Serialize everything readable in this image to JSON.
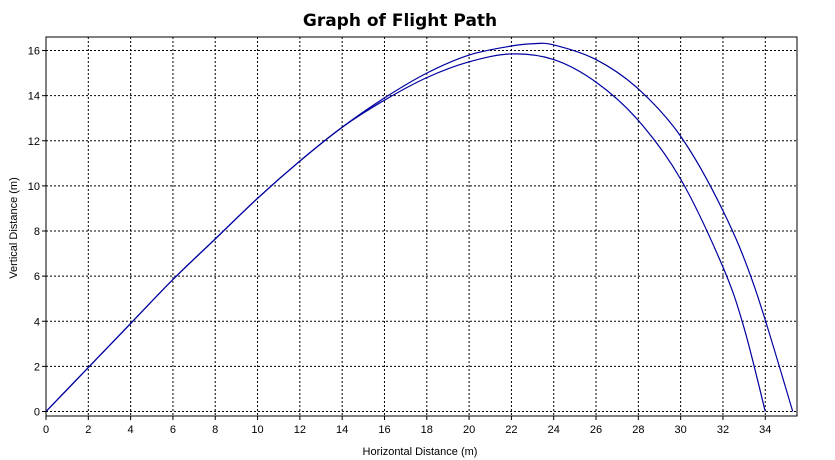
{
  "chart_data": {
    "type": "line",
    "title": "Graph of Flight Path",
    "xlabel": "Horizontal Distance (m)",
    "ylabel": "Vertical Distance (m)",
    "xlim": [
      0,
      35.5
    ],
    "ylim": [
      -0.2,
      16.6
    ],
    "grid": true,
    "x_ticks": [
      0,
      2,
      4,
      6,
      8,
      10,
      12,
      14,
      16,
      18,
      20,
      22,
      24,
      26,
      28,
      30,
      32,
      34
    ],
    "y_ticks": [
      0,
      2,
      4,
      6,
      8,
      10,
      12,
      14,
      16
    ],
    "series": [
      {
        "color": "#0000a0",
        "x": [
          0,
          2,
          4,
          6,
          8,
          10,
          12,
          14,
          16,
          18,
          20,
          22,
          23,
          24,
          26,
          28,
          30,
          32,
          33.5,
          35.3
        ],
        "y": [
          0,
          1.95,
          3.9,
          5.85,
          7.65,
          9.45,
          11.1,
          12.6,
          13.9,
          15.0,
          15.8,
          16.2,
          16.3,
          16.25,
          15.6,
          14.3,
          12.2,
          8.9,
          5.5,
          0
        ]
      },
      {
        "color": "#0000a0",
        "x": [
          0,
          2,
          4,
          6,
          8,
          10,
          12,
          14,
          16,
          18,
          20,
          22,
          24,
          26,
          28,
          30,
          32,
          33,
          34
        ],
        "y": [
          0,
          1.95,
          3.9,
          5.85,
          7.65,
          9.45,
          11.1,
          12.6,
          13.8,
          14.8,
          15.5,
          15.85,
          15.6,
          14.6,
          12.9,
          10.3,
          6.4,
          3.7,
          0
        ]
      }
    ]
  }
}
